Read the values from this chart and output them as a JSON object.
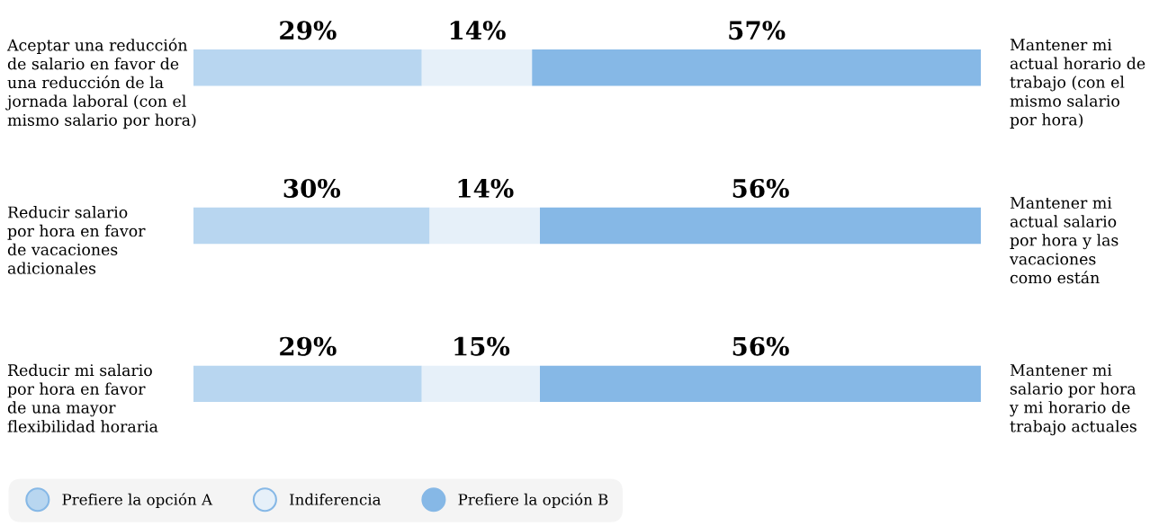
{
  "chart_data": {
    "type": "bar",
    "orientation": "horizontal",
    "stacked": true,
    "legend": "bottom left",
    "categories": [
      "Aceptar una reducción\nde salario en favor de\nuna reducción de la\njornada laboral (con el\nmismo salario por hora)",
      "Reducir salario\npor hora en favor\nde vacaciones\nadicionales",
      "Reducir mi salario\npor hora en favor\nde una mayor\nflexibilidad horaria"
    ],
    "series": [
      {
        "name": "Prefiere la opción A",
        "color": "#b8d6f0",
        "values": [
          29,
          30,
          29
        ],
        "value_labels": [
          "29%",
          "30%",
          "29%"
        ]
      },
      {
        "name": "Indiferencia",
        "color": "#e6f0f9",
        "values": [
          14,
          14,
          15
        ],
        "value_labels": [
          "14%",
          "14%",
          "15%"
        ]
      },
      {
        "name": "Prefiere la opción B",
        "color": "#86b8e6",
        "values": [
          57,
          56,
          56
        ],
        "value_labels": [
          "57%",
          "56%",
          "56%"
        ]
      }
    ],
    "annotations": [
      "Mantener mi\nactual horario de\ntrabajo (con el\nmismo salario\npor hora)",
      "Mantener mi\nactual salario\npor hora y las\nvacaciones\ncomo están",
      "Mantener mi\nsalario por hora\ny mi horario de\ntrabajo actuales"
    ]
  }
}
